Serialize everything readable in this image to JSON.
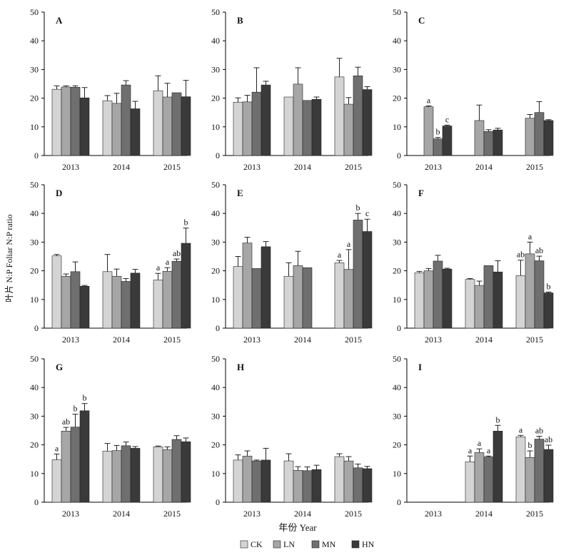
{
  "figure": {
    "ylabel": "叶片 N:P  Foliar N:P ratio",
    "xlabel": "年份 Year",
    "colors": {
      "CK": "#d4d4d4",
      "LN": "#a6a6a6",
      "MN": "#6f6f6f",
      "HN": "#3a3a3a"
    },
    "legend": [
      "CK",
      "LN",
      "MN",
      "HN"
    ]
  },
  "chart_data": [
    {
      "type": "bar",
      "panel": "A",
      "categories": [
        "2013",
        "2014",
        "2015"
      ],
      "ylim": [
        0,
        50
      ],
      "yticks": [
        0,
        10,
        20,
        30,
        40,
        50
      ],
      "series": [
        {
          "name": "CK",
          "values": [
            23.1,
            19.1,
            22.6
          ],
          "errors": [
            1.2,
            1.8,
            5.2
          ],
          "labels": [
            "",
            "",
            ""
          ]
        },
        {
          "name": "LN",
          "values": [
            23.9,
            18.2,
            20.4
          ],
          "errors": [
            0.4,
            3.5,
            4.8
          ],
          "labels": [
            "",
            "",
            ""
          ]
        },
        {
          "name": "MN",
          "values": [
            23.8,
            24.6,
            21.9
          ],
          "errors": [
            0.5,
            1.5,
            0
          ],
          "labels": [
            "",
            "",
            ""
          ]
        },
        {
          "name": "HN",
          "values": [
            20.1,
            16.3,
            20.5
          ],
          "errors": [
            3.6,
            2.6,
            5.7
          ],
          "labels": [
            "",
            "",
            ""
          ]
        }
      ]
    },
    {
      "type": "bar",
      "panel": "B",
      "categories": [
        "2013",
        "2014",
        "2015"
      ],
      "ylim": [
        0,
        50
      ],
      "yticks": [
        0,
        10,
        20,
        30,
        40,
        50
      ],
      "series": [
        {
          "name": "CK",
          "values": [
            18.6,
            20.4,
            27.4
          ],
          "errors": [
            1.5,
            0,
            6.5
          ],
          "labels": [
            "",
            "",
            ""
          ]
        },
        {
          "name": "LN",
          "values": [
            18.7,
            24.9,
            17.9
          ],
          "errors": [
            2.3,
            5.7,
            2.3
          ],
          "labels": [
            "",
            "",
            ""
          ]
        },
        {
          "name": "MN",
          "values": [
            22.1,
            19.2,
            27.8
          ],
          "errors": [
            8.5,
            0,
            3.0
          ],
          "labels": [
            "",
            "",
            ""
          ]
        },
        {
          "name": "HN",
          "values": [
            24.6,
            19.6,
            23.0
          ],
          "errors": [
            1.3,
            0.8,
            1.0
          ],
          "labels": [
            "",
            "",
            ""
          ]
        }
      ]
    },
    {
      "type": "bar",
      "panel": "C",
      "categories": [
        "2013",
        "2014",
        "2015"
      ],
      "ylim": [
        0,
        50
      ],
      "yticks": [
        0,
        10,
        20,
        30,
        40,
        50
      ],
      "series": [
        {
          "name": "CK",
          "values": [
            0,
            0,
            0
          ],
          "errors": [
            0,
            0,
            0
          ],
          "labels": [
            "",
            "",
            ""
          ]
        },
        {
          "name": "LN",
          "values": [
            17.0,
            12.2,
            13.0
          ],
          "errors": [
            0.3,
            5.4,
            1.3
          ],
          "labels": [
            "a",
            "",
            ""
          ]
        },
        {
          "name": "MN",
          "values": [
            5.8,
            8.4,
            15.0
          ],
          "errors": [
            0.5,
            0.6,
            3.8
          ],
          "labels": [
            "b",
            "",
            ""
          ]
        },
        {
          "name": "HN",
          "values": [
            10.3,
            8.9,
            12.2
          ],
          "errors": [
            0.3,
            0.6,
            0.3
          ],
          "labels": [
            "c",
            "",
            ""
          ]
        }
      ]
    },
    {
      "type": "bar",
      "panel": "D",
      "categories": [
        "2013",
        "2014",
        "2015"
      ],
      "ylim": [
        0,
        50
      ],
      "yticks": [
        0,
        10,
        20,
        30,
        40,
        50
      ],
      "series": [
        {
          "name": "CK",
          "values": [
            25.2,
            19.7,
            16.8
          ],
          "errors": [
            0.5,
            6.0,
            2.3
          ],
          "labels": [
            "",
            "",
            "a"
          ]
        },
        {
          "name": "LN",
          "values": [
            18.1,
            18.1,
            19.8
          ],
          "errors": [
            0.8,
            2.5,
            1.3
          ],
          "labels": [
            "",
            "",
            "a"
          ]
        },
        {
          "name": "MN",
          "values": [
            19.7,
            16.3,
            23.3
          ],
          "errors": [
            3.4,
            1.0,
            0.8
          ],
          "labels": [
            "",
            "",
            "ab"
          ]
        },
        {
          "name": "HN",
          "values": [
            14.6,
            19.2,
            29.6
          ],
          "errors": [
            0.3,
            1.3,
            5.3
          ],
          "labels": [
            "",
            "",
            "b"
          ]
        }
      ]
    },
    {
      "type": "bar",
      "panel": "E",
      "categories": [
        "2013",
        "2014",
        "2015"
      ],
      "ylim": [
        0,
        50
      ],
      "yticks": [
        0,
        10,
        20,
        30,
        40,
        50
      ],
      "series": [
        {
          "name": "CK",
          "values": [
            21.5,
            18.1,
            22.8
          ],
          "errors": [
            3.5,
            4.7,
            0.8
          ],
          "labels": [
            "",
            "",
            "a"
          ]
        },
        {
          "name": "LN",
          "values": [
            29.7,
            21.8,
            20.5
          ],
          "errors": [
            2.0,
            5.0,
            6.9
          ],
          "labels": [
            "",
            "",
            "a"
          ]
        },
        {
          "name": "MN",
          "values": [
            20.8,
            21.1,
            37.7
          ],
          "errors": [
            0,
            0,
            2.3
          ],
          "labels": [
            "",
            "",
            "b"
          ]
        },
        {
          "name": "HN",
          "values": [
            28.4,
            0,
            33.7
          ],
          "errors": [
            1.8,
            0,
            4.3
          ],
          "labels": [
            "",
            "",
            "c"
          ]
        }
      ]
    },
    {
      "type": "bar",
      "panel": "F",
      "categories": [
        "2013",
        "2014",
        "2015"
      ],
      "ylim": [
        0,
        50
      ],
      "yticks": [
        0,
        10,
        20,
        30,
        40,
        50
      ],
      "series": [
        {
          "name": "CK",
          "values": [
            19.3,
            17.0,
            18.3
          ],
          "errors": [
            0.5,
            0.3,
            5.4
          ],
          "labels": [
            "",
            "",
            "ab"
          ]
        },
        {
          "name": "LN",
          "values": [
            20.0,
            14.9,
            25.9
          ],
          "errors": [
            0.8,
            1.5,
            4.1
          ],
          "labels": [
            "",
            "",
            "a"
          ]
        },
        {
          "name": "MN",
          "values": [
            23.4,
            21.8,
            23.5
          ],
          "errors": [
            2.0,
            0,
            1.6
          ],
          "labels": [
            "",
            "",
            "ab"
          ]
        },
        {
          "name": "HN",
          "values": [
            20.6,
            19.6,
            12.3
          ],
          "errors": [
            0.3,
            3.9,
            0.3
          ],
          "labels": [
            "",
            "",
            "b"
          ]
        }
      ]
    },
    {
      "type": "bar",
      "panel": "G",
      "categories": [
        "2013",
        "2014",
        "2015"
      ],
      "ylim": [
        0,
        50
      ],
      "yticks": [
        0,
        10,
        20,
        30,
        40,
        50
      ],
      "series": [
        {
          "name": "CK",
          "values": [
            14.8,
            17.8,
            19.3
          ],
          "errors": [
            2.0,
            2.7,
            0.3
          ],
          "labels": [
            "a",
            "",
            ""
          ]
        },
        {
          "name": "LN",
          "values": [
            24.8,
            18.0,
            18.3
          ],
          "errors": [
            1.3,
            1.8,
            1.0
          ],
          "labels": [
            "ab",
            "",
            ""
          ]
        },
        {
          "name": "MN",
          "values": [
            26.2,
            19.7,
            21.9
          ],
          "errors": [
            4.5,
            1.3,
            1.3
          ],
          "labels": [
            "b",
            "",
            ""
          ]
        },
        {
          "name": "HN",
          "values": [
            31.9,
            18.8,
            21.1
          ],
          "errors": [
            2.5,
            0.6,
            1.3
          ],
          "labels": [
            "b",
            "",
            ""
          ]
        }
      ]
    },
    {
      "type": "bar",
      "panel": "H",
      "categories": [
        "2013",
        "2014",
        "2015"
      ],
      "ylim": [
        0,
        50
      ],
      "yticks": [
        0,
        10,
        20,
        30,
        40,
        50
      ],
      "series": [
        {
          "name": "CK",
          "values": [
            14.7,
            14.4,
            15.9
          ],
          "errors": [
            1.8,
            2.5,
            1.0
          ],
          "labels": [
            "",
            "",
            ""
          ]
        },
        {
          "name": "LN",
          "values": [
            16.1,
            11.1,
            14.4
          ],
          "errors": [
            1.8,
            1.3,
            1.5
          ],
          "labels": [
            "",
            "",
            ""
          ]
        },
        {
          "name": "MN",
          "values": [
            14.4,
            11.0,
            12.0
          ],
          "errors": [
            0.3,
            1.3,
            1.3
          ],
          "labels": [
            "",
            "",
            ""
          ]
        },
        {
          "name": "HN",
          "values": [
            14.7,
            11.4,
            11.7
          ],
          "errors": [
            4.1,
            1.5,
            0.8
          ],
          "labels": [
            "",
            "",
            ""
          ]
        }
      ]
    },
    {
      "type": "bar",
      "panel": "I",
      "categories": [
        "2013",
        "2014",
        "2015"
      ],
      "ylim": [
        0,
        50
      ],
      "yticks": [
        0,
        10,
        20,
        30,
        40,
        50
      ],
      "series": [
        {
          "name": "CK",
          "values": [
            0,
            14.1,
            22.8
          ],
          "errors": [
            0,
            2.0,
            0.5
          ],
          "labels": [
            "",
            "a",
            "a"
          ]
        },
        {
          "name": "LN",
          "values": [
            0,
            17.3,
            15.6
          ],
          "errors": [
            0,
            1.3,
            2.3
          ],
          "labels": [
            "",
            "a",
            "b"
          ]
        },
        {
          "name": "MN",
          "values": [
            0,
            15.8,
            22.0
          ],
          "errors": [
            0,
            0.3,
            1.0
          ],
          "labels": [
            "",
            "a",
            "ab"
          ]
        },
        {
          "name": "HN",
          "values": [
            0,
            24.8,
            18.4
          ],
          "errors": [
            0,
            2.0,
            1.5
          ],
          "labels": [
            "",
            "b",
            "ab"
          ]
        }
      ]
    }
  ]
}
